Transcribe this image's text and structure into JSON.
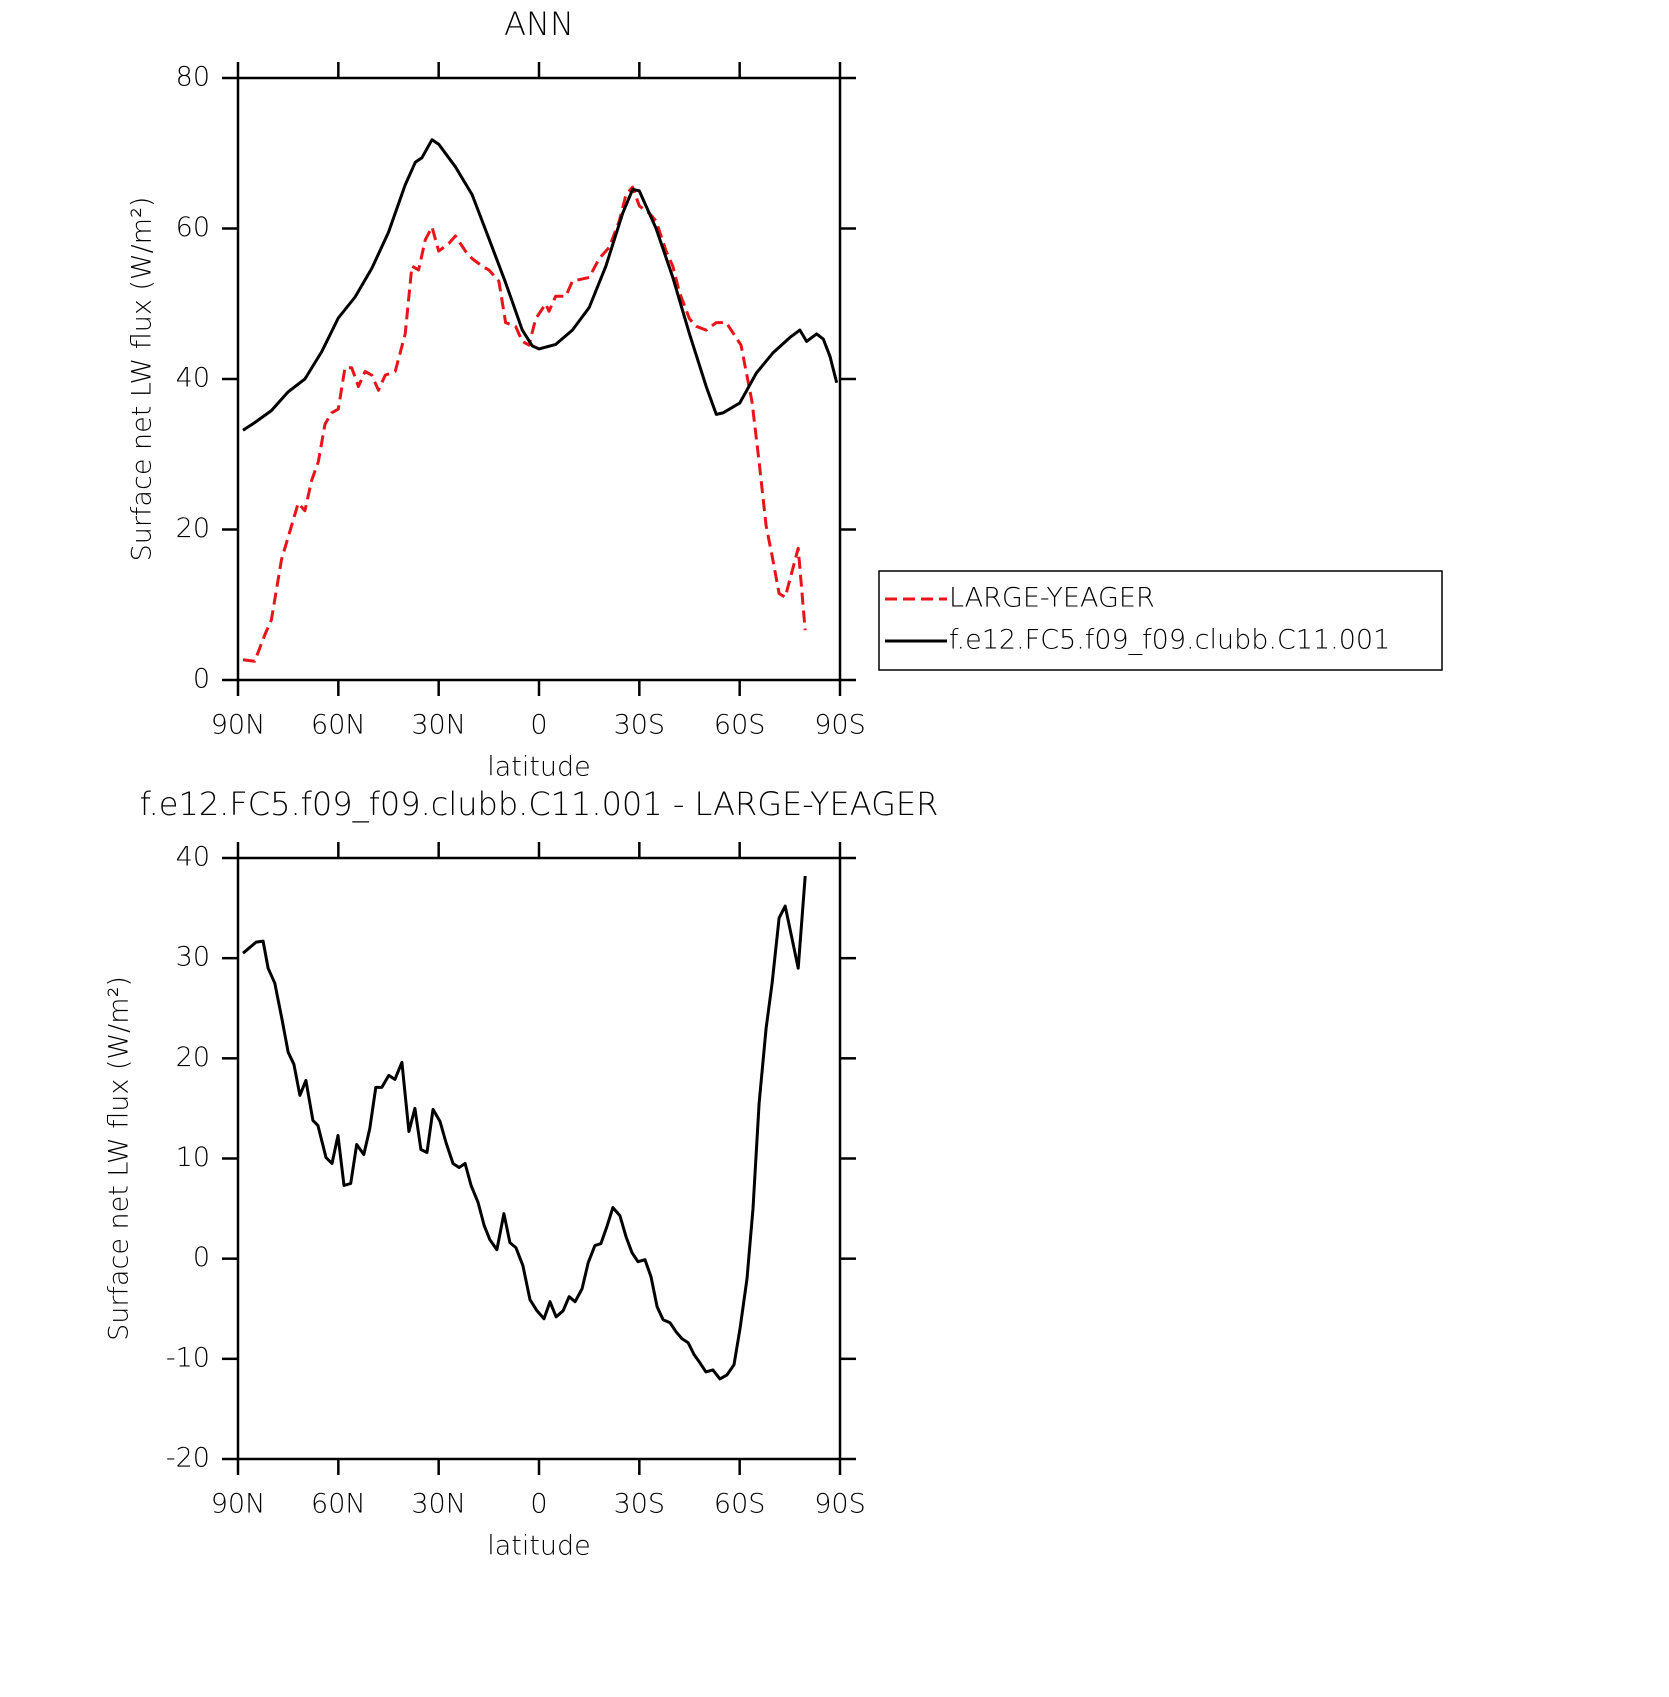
{
  "chart_data": [
    {
      "type": "line",
      "title": "ANN",
      "x_label": "latitude",
      "y_label": "Surface net LW flux (W/m²)",
      "xlim": [
        90,
        -90
      ],
      "xticks": [
        {
          "value": 90,
          "label": "90N"
        },
        {
          "value": 60,
          "label": "60N"
        },
        {
          "value": 30,
          "label": "30N"
        },
        0,
        {
          "value": -30,
          "label": "30S"
        },
        {
          "value": -60,
          "label": "60S"
        },
        {
          "value": -90,
          "label": "90S"
        }
      ],
      "ylim": [
        0,
        80
      ],
      "yticks": [
        0,
        20,
        40,
        60,
        80
      ],
      "legend": "outside-right",
      "series": [
        {
          "name": "LARGE-YEAGER",
          "color": "#e8141a",
          "dashed": true,
          "x": [
            88.5,
            85,
            82,
            80,
            77,
            75,
            72,
            70,
            68,
            66,
            64,
            62,
            60,
            58,
            56,
            54,
            52,
            50,
            48,
            46,
            43,
            40,
            38,
            36,
            34,
            32,
            30,
            27,
            25,
            22,
            20,
            17,
            15,
            12,
            10,
            7,
            5,
            3,
            1,
            -2,
            -3,
            -5,
            -8,
            -10,
            -15,
            -18,
            -21,
            -24,
            -26,
            -28,
            -30,
            -33,
            -35,
            -38,
            -40,
            -42,
            -45,
            -47,
            -50,
            -53,
            -56,
            -60.4,
            -63.7,
            -65.8,
            -67.9,
            -69.7,
            -71.8,
            -73.6,
            -75.7,
            -77.5,
            -79.6
          ],
          "values": [
            2.7,
            2.5,
            6,
            8,
            16,
            19,
            23.5,
            22.5,
            26.5,
            29,
            34,
            35.5,
            36,
            41.5,
            41.5,
            39,
            41,
            40.5,
            38.5,
            40.5,
            41,
            46,
            55,
            54.5,
            58.5,
            60.2,
            57,
            58,
            59,
            57,
            56,
            55,
            54.5,
            53,
            47.5,
            47,
            45,
            44.5,
            48,
            50,
            49,
            51,
            51,
            53,
            53.5,
            56,
            57.5,
            61,
            64.5,
            65.5,
            63,
            62,
            61,
            57,
            55,
            51.5,
            48,
            47,
            46.5,
            47.5,
            47.5,
            44.5,
            37,
            29,
            20.5,
            16.5,
            11.5,
            11,
            14.5,
            17.5,
            6.6
          ]
        },
        {
          "name": "f.e12.FC5.f09_f09.clubb.C11.001",
          "color": "#000000",
          "dashed": false,
          "x": [
            88.5,
            85,
            80,
            75,
            70,
            65,
            60,
            55,
            50,
            45,
            40,
            37,
            35,
            32,
            30,
            25,
            20,
            15,
            10,
            5,
            2,
            0,
            -5,
            -10,
            -15,
            -20,
            -25,
            -28,
            -30,
            -35,
            -40,
            -45,
            -50,
            -53,
            -55,
            -60,
            -65,
            -70,
            -75,
            -78,
            -80,
            -83,
            -85,
            -87,
            -89
          ],
          "values": [
            33.2,
            34.2,
            35.8,
            38.3,
            40,
            43.6,
            48.1,
            50.9,
            54.7,
            59.5,
            65.8,
            68.8,
            69.4,
            71.8,
            71.2,
            68.2,
            64.5,
            58.7,
            52.8,
            46.5,
            44.4,
            44,
            44.6,
            46.5,
            49.5,
            55,
            62,
            65.2,
            65,
            60,
            53.5,
            46,
            39,
            35.3,
            35.5,
            36.8,
            40.8,
            43.5,
            45.5,
            46.5,
            45,
            46,
            45.3,
            43,
            39.5
          ]
        }
      ]
    },
    {
      "type": "line",
      "title": "f.e12.FC5.f09_f09.clubb.C11.001 - LARGE-YEAGER",
      "x_label": "latitude",
      "y_label": "Surface net LW flux (W/m²)",
      "xlim": [
        90,
        -90
      ],
      "xticks": [
        {
          "value": 90,
          "label": "90N"
        },
        {
          "value": 60,
          "label": "60N"
        },
        {
          "value": 30,
          "label": "30N"
        },
        0,
        {
          "value": -30,
          "label": "30S"
        },
        {
          "value": -60,
          "label": "60S"
        },
        {
          "value": -90,
          "label": "90S"
        }
      ],
      "ylim": [
        -20,
        40
      ],
      "yticks": [
        -20,
        -10,
        0,
        10,
        20,
        30,
        40
      ],
      "series": [
        {
          "color": "#000000",
          "dashed": false,
          "x": [
            88.5,
            84.6,
            82.5,
            81,
            79,
            76.9,
            75,
            73.3,
            71.5,
            69.7,
            67.6,
            66.1,
            63.7,
            61.9,
            60.1,
            58.3,
            56.3,
            54.5,
            52.4,
            50.6,
            48.8,
            47,
            44.9,
            43.1,
            41,
            38.9,
            37.1,
            35.3,
            33.5,
            31.7,
            29.6,
            27.8,
            25.7,
            23.9,
            22.1,
            20.3,
            18.2,
            16.4,
            14.7,
            12.6,
            10.5,
            8.7,
            6.9,
            4.8,
            2.7,
            0.6,
            -1.5,
            -3.3,
            -5.1,
            -7.2,
            -9,
            -10.8,
            -12.9,
            -14.7,
            -16.7,
            -18.5,
            -20.3,
            -22.1,
            -24.2,
            -26,
            -27.8,
            -29.6,
            -31.7,
            -33.5,
            -35.3,
            -37.1,
            -39.2,
            -41,
            -42.8,
            -44.6,
            -46.4,
            -48.1,
            -49.9,
            -52,
            -54.1,
            -56.2,
            -58.3,
            -60.1,
            -62.2,
            -64,
            -65.8,
            -67.9,
            -69.7,
            -71.8,
            -73.6,
            -77.5,
            -79.6
          ],
          "values": [
            30.5,
            31.6,
            31.7,
            29,
            27.5,
            24,
            20.6,
            19.4,
            16.3,
            17.8,
            13.8,
            13.3,
            10.1,
            9.5,
            12.3,
            7.3,
            7.5,
            11.4,
            10.4,
            13,
            17.1,
            17.1,
            18.3,
            17.9,
            19.6,
            12.7,
            15,
            10.9,
            10.6,
            14.9,
            13.7,
            11.6,
            9.5,
            9.1,
            9.5,
            7.3,
            5.6,
            3.3,
            1.9,
            0.9,
            4.5,
            1.6,
            1.1,
            -0.7,
            -4.1,
            -5.2,
            -6,
            -4.3,
            -5.8,
            -5.2,
            -3.8,
            -4.3,
            -3,
            -0.4,
            1.3,
            1.5,
            3.2,
            5.1,
            4.3,
            2.2,
            0.6,
            -0.3,
            -0.1,
            -1.8,
            -4.8,
            -6.1,
            -6.4,
            -7.3,
            -8,
            -8.4,
            -9.6,
            -10.4,
            -11.3,
            -11.1,
            -12,
            -11.6,
            -10.6,
            -7,
            -2,
            5,
            15.5,
            23,
            27.5,
            34,
            35.2,
            29,
            38.2
          ]
        }
      ]
    }
  ]
}
